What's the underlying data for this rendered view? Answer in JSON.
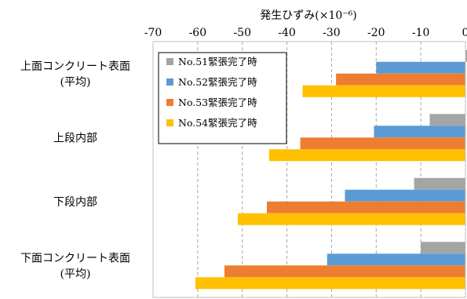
{
  "chart_data": {
    "type": "bar",
    "orientation": "horizontal",
    "title": "",
    "xlabel": "発生ひずみ(×10⁻⁶)",
    "ylabel": "",
    "xlim": [
      -70,
      0
    ],
    "xticks": [
      -70,
      -60,
      -50,
      -40,
      -30,
      -20,
      -10,
      0
    ],
    "x_axis_position": "top",
    "grid": "vertical dashed",
    "legend_position": "top-left",
    "categories": [
      [
        "上面コンクリート表面",
        "(平均)"
      ],
      [
        "上段内部"
      ],
      [
        "下段内部"
      ],
      [
        "下面コンクリート表面",
        "(平均)"
      ]
    ],
    "series": [
      {
        "name": "No.51緊張完了時",
        "color": "#a5a5a5",
        "values": [
          0.5,
          -8,
          -11.5,
          -10
        ]
      },
      {
        "name": "No.52緊張完了時",
        "color": "#5b9bd5",
        "values": [
          -20,
          -20.5,
          -27,
          -31
        ]
      },
      {
        "name": "No.53緊張完了時",
        "color": "#ed7d31",
        "values": [
          -29,
          -37,
          -44.5,
          -54
        ]
      },
      {
        "name": "No.54緊張完了時",
        "color": "#ffc000",
        "values": [
          -36.5,
          -44,
          -51,
          -60.5
        ]
      }
    ]
  }
}
